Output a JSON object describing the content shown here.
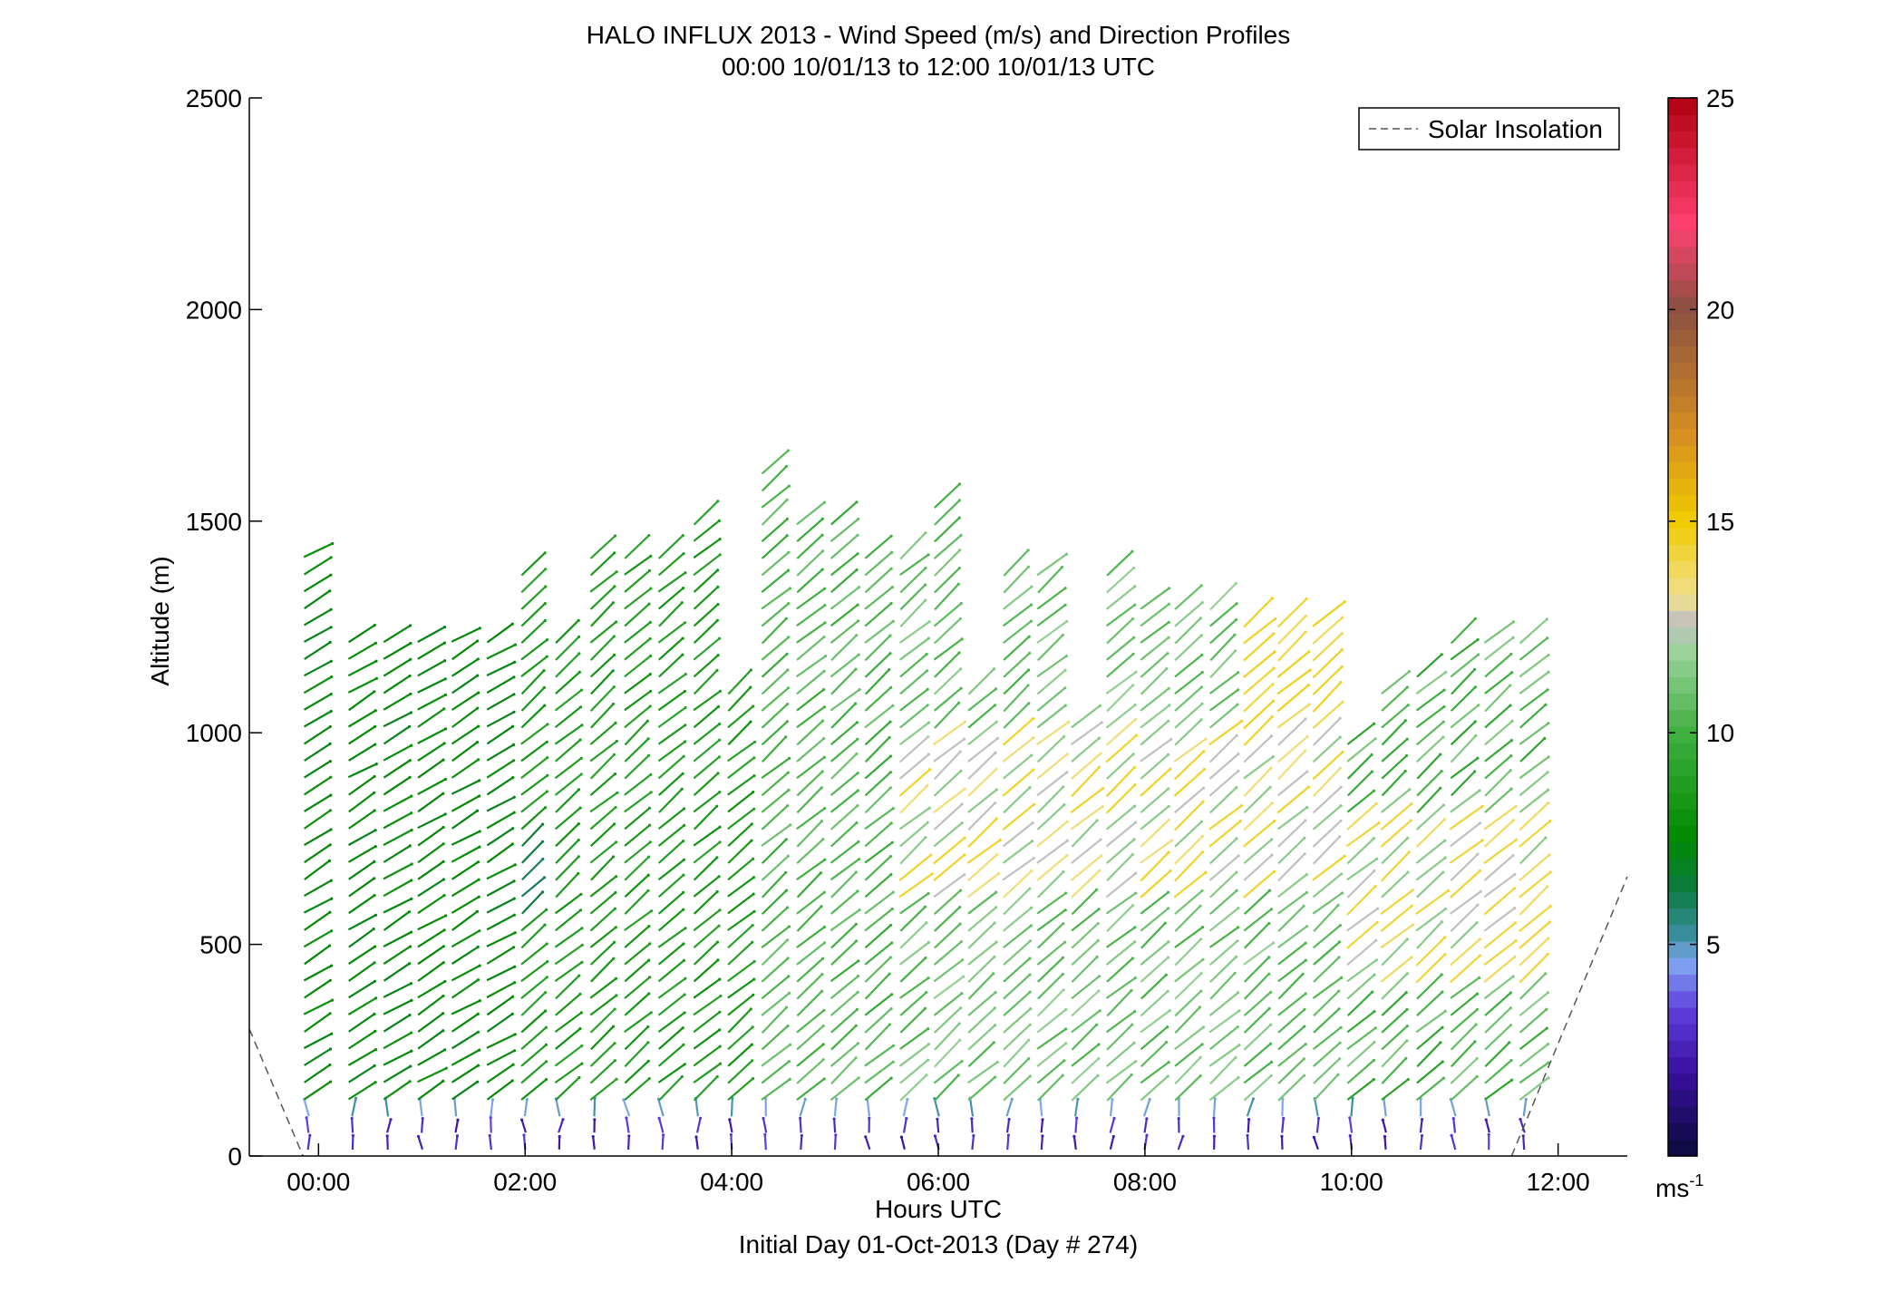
{
  "chart_data": {
    "type": "quiver",
    "title": "HALO INFLUX 2013 - Wind Speed (m/s) and Direction Profiles",
    "subtitle": "00:00 10/01/13 to 12:00 10/01/13  UTC",
    "xlabel": "Hours UTC",
    "xlabel2": "Initial Day 01-Oct-2013 (Day # 274)",
    "ylabel": "Altitude (m)",
    "xlim": [
      -0.67,
      12.67
    ],
    "ylim": [
      0,
      2500
    ],
    "xticks": [
      0,
      2,
      4,
      6,
      8,
      10,
      12
    ],
    "xtick_labels": [
      "00:00",
      "02:00",
      "04:00",
      "06:00",
      "08:00",
      "10:00",
      "12:00"
    ],
    "yticks": [
      0,
      500,
      1000,
      1500,
      2000,
      2500
    ],
    "ytick_labels": [
      "0",
      "500",
      "1000",
      "1500",
      "2000",
      "2500"
    ],
    "legend": {
      "entries": [
        "Solar Insolation"
      ],
      "placement": "top-right",
      "line_style": "dashed",
      "line_color": "#808080"
    },
    "colorbar": {
      "label": "ms",
      "label_exponent": "-1",
      "range": [
        0,
        25
      ],
      "ticks": [
        5,
        10,
        15,
        20,
        25
      ],
      "tick_labels": [
        "5",
        "10",
        "15",
        "20",
        "25"
      ],
      "stops": [
        {
          "v": 0,
          "c": "#0a0a3a"
        },
        {
          "v": 2,
          "c": "#3a10a0"
        },
        {
          "v": 3.5,
          "c": "#6040e0"
        },
        {
          "v": 4.6,
          "c": "#80a8f0"
        },
        {
          "v": 5.2,
          "c": "#3a8fa0"
        },
        {
          "v": 6.3,
          "c": "#0a7a40"
        },
        {
          "v": 7.5,
          "c": "#008a00"
        },
        {
          "v": 10,
          "c": "#40b040"
        },
        {
          "v": 12,
          "c": "#a0d4a0"
        },
        {
          "v": 12.6,
          "c": "#c0c0c0"
        },
        {
          "v": 13.2,
          "c": "#f0e090"
        },
        {
          "v": 15,
          "c": "#f0cc00"
        },
        {
          "v": 17,
          "c": "#d89020"
        },
        {
          "v": 20,
          "c": "#8a5040"
        },
        {
          "v": 22,
          "c": "#ff4070"
        },
        {
          "v": 25,
          "c": "#b00010"
        }
      ]
    },
    "solar_insolation_segments": [
      {
        "x": [
          -0.67,
          -0.15
        ],
        "y": [
          300,
          0
        ]
      },
      {
        "x": [
          11.55,
          12.67
        ],
        "y": [
          0,
          660
        ]
      }
    ],
    "profiles": [
      {
        "t": -0.1,
        "top": 1450,
        "zone": 0
      },
      {
        "t": 0.33,
        "top": 1250,
        "zone": 0
      },
      {
        "t": 0.67,
        "top": 1250,
        "zone": 0
      },
      {
        "t": 1.0,
        "top": 1250,
        "zone": 0
      },
      {
        "t": 1.33,
        "top": 1250,
        "zone": 0
      },
      {
        "t": 1.67,
        "top": 1250,
        "zone": 0
      },
      {
        "t": 2.0,
        "top": 1400,
        "zone": 1
      },
      {
        "t": 2.33,
        "top": 1250,
        "zone": 1
      },
      {
        "t": 2.67,
        "top": 1450,
        "zone": 1
      },
      {
        "t": 3.0,
        "top": 1450,
        "zone": 1
      },
      {
        "t": 3.33,
        "top": 1450,
        "zone": 1
      },
      {
        "t": 3.67,
        "top": 1500,
        "zone": 1
      },
      {
        "t": 4.0,
        "top": 1130,
        "zone": 1
      },
      {
        "t": 4.33,
        "top": 1620,
        "zone": 2
      },
      {
        "t": 4.67,
        "top": 1500,
        "zone": 2
      },
      {
        "t": 5.0,
        "top": 1500,
        "zone": 2
      },
      {
        "t": 5.33,
        "top": 1450,
        "zone": 2
      },
      {
        "t": 5.67,
        "top": 1450,
        "zone": 3
      },
      {
        "t": 6.0,
        "top": 1540,
        "zone": 3
      },
      {
        "t": 6.33,
        "top": 1130,
        "zone": 3
      },
      {
        "t": 6.67,
        "top": 1410,
        "zone": 3
      },
      {
        "t": 7.0,
        "top": 1410,
        "zone": 3
      },
      {
        "t": 7.33,
        "top": 1050,
        "zone": 3
      },
      {
        "t": 7.67,
        "top": 1380,
        "zone": 3
      },
      {
        "t": 8.0,
        "top": 1300,
        "zone": 3
      },
      {
        "t": 8.33,
        "top": 1300,
        "zone": 3
      },
      {
        "t": 8.67,
        "top": 1300,
        "zone": 3
      },
      {
        "t": 9.0,
        "top": 1260,
        "zone": 3
      },
      {
        "t": 9.33,
        "top": 1260,
        "zone": 3
      },
      {
        "t": 9.67,
        "top": 1260,
        "zone": 3
      },
      {
        "t": 10.0,
        "top": 1000,
        "zone": 4
      },
      {
        "t": 10.33,
        "top": 1130,
        "zone": 4
      },
      {
        "t": 10.67,
        "top": 1170,
        "zone": 4
      },
      {
        "t": 11.0,
        "top": 1250,
        "zone": 4
      },
      {
        "t": 11.33,
        "top": 1250,
        "zone": 4
      },
      {
        "t": 11.67,
        "top": 1250,
        "zone": 4
      }
    ],
    "altitude_step": 40,
    "plotted_hours": [
      -0.1,
      11.67
    ]
  }
}
